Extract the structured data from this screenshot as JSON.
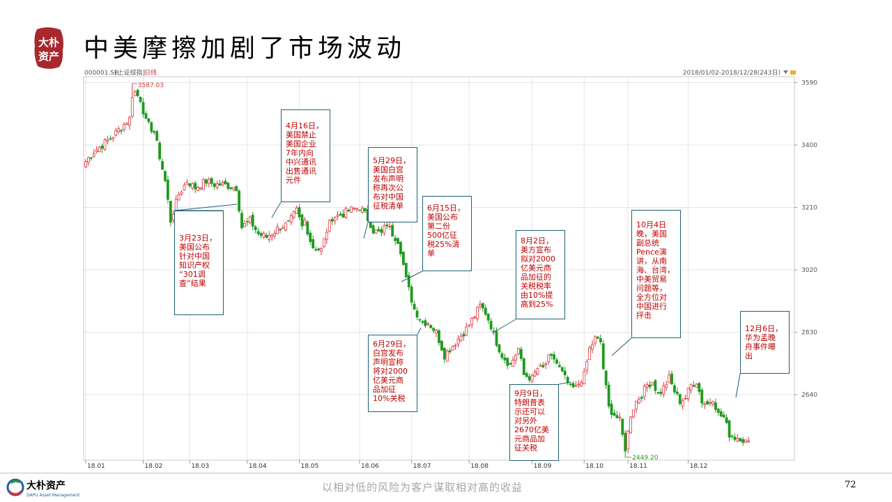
{
  "slide": {
    "title": "中美摩擦加剧了市场波动",
    "logo_text": "大朴资产",
    "footer_brand": "大朴资产",
    "footer_brand_en": "DAPU Asset Management",
    "tagline": "以相对低的风险为客户谋取相对高的收益",
    "page_number": "72"
  },
  "colors": {
    "up": "#e0303a",
    "down": "#1e9b1e",
    "annotation_border": "#1f5f75",
    "annotation_text": "#c00000"
  },
  "chart_header": {
    "symbol": "000001.SH",
    "name": "[上证综指]",
    "period": "日线",
    "range": "2018/01/02-2018/12/28(243日)"
  },
  "chart_data": {
    "type": "candlestick",
    "x_ticks": [
      "18.01",
      "18.02",
      "18.03",
      "18.04",
      "18.05",
      "18.06",
      "18.07",
      "18.08",
      "18.09",
      "18.10",
      "18.11",
      "18.12"
    ],
    "y_ticks": [
      2640,
      2830,
      3020,
      3210,
      3400,
      3590
    ],
    "ylim": [
      2410,
      3610
    ],
    "max_label": "3587.03",
    "min_label": "2449.20",
    "grid": true,
    "close_waypoints": [
      [
        0,
        3350
      ],
      [
        3,
        3380
      ],
      [
        9,
        3420
      ],
      [
        16,
        3480
      ],
      [
        18,
        3560
      ],
      [
        20,
        3540
      ],
      [
        22,
        3470
      ],
      [
        25,
        3440
      ],
      [
        29,
        3290
      ],
      [
        31,
        3170
      ],
      [
        34,
        3250
      ],
      [
        37,
        3290
      ],
      [
        40,
        3270
      ],
      [
        44,
        3290
      ],
      [
        47,
        3280
      ],
      [
        50,
        3280
      ],
      [
        55,
        3270
      ],
      [
        57,
        3150
      ],
      [
        60,
        3170
      ],
      [
        63,
        3130
      ],
      [
        66,
        3120
      ],
      [
        71,
        3150
      ],
      [
        74,
        3160
      ],
      [
        77,
        3200
      ],
      [
        79,
        3150
      ],
      [
        80,
        3170
      ],
      [
        82,
        3110
      ],
      [
        83,
        3090
      ],
      [
        86,
        3080
      ],
      [
        88,
        3140
      ],
      [
        90,
        3180
      ],
      [
        94,
        3190
      ],
      [
        96,
        3200
      ],
      [
        100,
        3210
      ],
      [
        102,
        3190
      ],
      [
        104,
        3160
      ],
      [
        105,
        3140
      ],
      [
        108,
        3130
      ],
      [
        110,
        3160
      ],
      [
        112,
        3130
      ],
      [
        114,
        3110
      ],
      [
        115,
        3080
      ],
      [
        117,
        2990
      ],
      [
        120,
        2900
      ],
      [
        123,
        2860
      ],
      [
        125,
        2860
      ],
      [
        128,
        2830
      ],
      [
        131,
        2760
      ],
      [
        134,
        2790
      ],
      [
        136,
        2810
      ],
      [
        139,
        2840
      ],
      [
        142,
        2880
      ],
      [
        144,
        2910
      ],
      [
        146,
        2890
      ],
      [
        148,
        2850
      ],
      [
        150,
        2800
      ],
      [
        152,
        2760
      ],
      [
        155,
        2730
      ],
      [
        158,
        2780
      ],
      [
        160,
        2700
      ],
      [
        163,
        2690
      ],
      [
        165,
        2720
      ],
      [
        167,
        2720
      ],
      [
        169,
        2750
      ],
      [
        171,
        2750
      ],
      [
        173,
        2720
      ],
      [
        175,
        2690
      ],
      [
        177,
        2660
      ],
      [
        179,
        2660
      ],
      [
        182,
        2700
      ],
      [
        184,
        2780
      ],
      [
        186,
        2810
      ],
      [
        188,
        2800
      ],
      [
        189,
        2720
      ],
      [
        191,
        2600
      ],
      [
        193,
        2580
      ],
      [
        195,
        2560
      ],
      [
        197,
        2470
      ],
      [
        199,
        2580
      ],
      [
        201,
        2620
      ],
      [
        203,
        2640
      ],
      [
        205,
        2670
      ],
      [
        207,
        2680
      ],
      [
        209,
        2640
      ],
      [
        211,
        2660
      ],
      [
        213,
        2690
      ],
      [
        215,
        2650
      ],
      [
        217,
        2620
      ],
      [
        219,
        2630
      ],
      [
        221,
        2670
      ],
      [
        223,
        2680
      ],
      [
        225,
        2620
      ],
      [
        227,
        2610
      ],
      [
        229,
        2630
      ],
      [
        231,
        2580
      ],
      [
        233,
        2570
      ],
      [
        235,
        2520
      ],
      [
        237,
        2510
      ],
      [
        239,
        2510
      ],
      [
        242,
        2490
      ]
    ]
  },
  "annotations": [
    {
      "id": "mar23",
      "lines": [
        "3月23日，",
        "美国公布",
        "针对中国",
        "知识产权",
        "“301调",
        "查”结果"
      ]
    },
    {
      "id": "apr16",
      "lines": [
        "4月16日，",
        "美国禁止",
        "美国企业",
        "7年内向",
        "中兴通讯",
        "出售通讯",
        "元件"
      ]
    },
    {
      "id": "may29",
      "lines": [
        "5月29日，",
        "美国白宫",
        "发布声明",
        "称再次公",
        "布对中国",
        "征税清单"
      ]
    },
    {
      "id": "jun15",
      "lines": [
        "6月15日，",
        "美国公布",
        "第二份",
        "500亿征",
        "税25%清",
        "单"
      ]
    },
    {
      "id": "jun29",
      "lines": [
        "6月29日，",
        "白宫发布",
        "声明宣称",
        "将对2000",
        "亿美元商",
        "品加征",
        "10%关税"
      ]
    },
    {
      "id": "aug2",
      "lines": [
        "8月2日，",
        "美方宣布",
        "拟对2000",
        "亿美元商",
        "品加征的",
        "关税税率",
        "由10%提",
        "高到25%"
      ]
    },
    {
      "id": "sep9",
      "lines": [
        "9月9日，",
        "特朗普表",
        "示还可以",
        "对另外",
        "2670亿美",
        "元商品加",
        "征关税"
      ]
    },
    {
      "id": "oct4",
      "lines": [
        "10月4日",
        "晚，美国",
        "副总统",
        "Pence演",
        "讲，从南",
        "海、台湾，",
        "中美贸易",
        "问题等，",
        "全方位对",
        "中国进行",
        "抨击"
      ]
    },
    {
      "id": "dec6",
      "lines": [
        "12月6日，",
        "华为孟晚",
        "舟事件曝",
        "出"
      ]
    }
  ]
}
